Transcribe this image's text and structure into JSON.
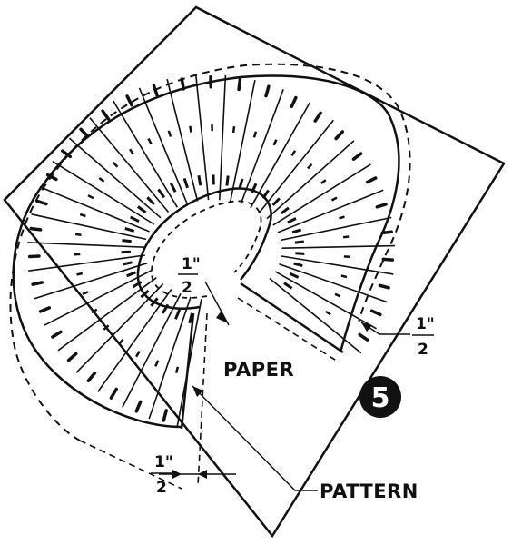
{
  "figure": {
    "number": "5",
    "labels": {
      "paper": "PAPER",
      "pattern": "PATTERN"
    },
    "allowances": [
      {
        "id": "inner",
        "numerator": "1\"",
        "denominator": "2"
      },
      {
        "id": "outer-right",
        "numerator": "1\"",
        "denominator": "2"
      },
      {
        "id": "seam-bottom",
        "numerator": "1\"",
        "denominator": "2"
      }
    ],
    "pattern_segments": 32,
    "colors": {
      "ink": "#111111",
      "paper": "#ffffff"
    }
  }
}
